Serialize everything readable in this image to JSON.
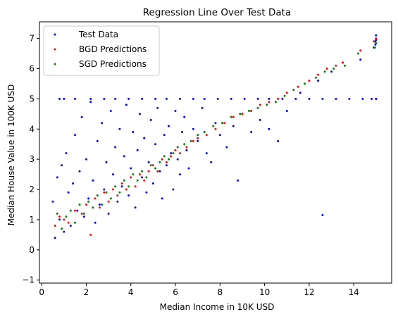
{
  "chart_data": {
    "type": "scatter",
    "title": "Regression Line Over Test Data",
    "xlabel": "Median Income in 10K USD",
    "ylabel": "Median House Value in 100K USD",
    "xlim": [
      -0.1,
      15.7
    ],
    "ylim": [
      -1.1,
      7.55
    ],
    "x_ticks": [
      0,
      2,
      4,
      6,
      8,
      10,
      12,
      14
    ],
    "y_ticks": [
      -1,
      0,
      1,
      2,
      3,
      4,
      5,
      6,
      7
    ],
    "grid": false,
    "legend_position": "top-left",
    "series": [
      {
        "name": "Test Data",
        "color": "#0000ff",
        "marker_size": 1.5,
        "points": [
          [
            0.5,
            1.6
          ],
          [
            0.6,
            0.4
          ],
          [
            0.7,
            2.4
          ],
          [
            0.8,
            1.0
          ],
          [
            0.9,
            2.8
          ],
          [
            1.0,
            0.6
          ],
          [
            1.1,
            3.2
          ],
          [
            1.2,
            1.9
          ],
          [
            1.3,
            0.8
          ],
          [
            1.4,
            2.2
          ],
          [
            1.5,
            3.8
          ],
          [
            1.6,
            1.3
          ],
          [
            1.7,
            2.6
          ],
          [
            1.8,
            4.4
          ],
          [
            1.9,
            1.1
          ],
          [
            2.0,
            3.0
          ],
          [
            2.1,
            1.7
          ],
          [
            2.2,
            4.9
          ],
          [
            2.3,
            2.3
          ],
          [
            2.4,
            0.9
          ],
          [
            2.5,
            3.6
          ],
          [
            2.6,
            1.5
          ],
          [
            2.7,
            4.2
          ],
          [
            2.8,
            2.0
          ],
          [
            2.9,
            2.9
          ],
          [
            3.0,
            1.2
          ],
          [
            3.1,
            4.6
          ],
          [
            3.2,
            2.5
          ],
          [
            3.3,
            3.4
          ],
          [
            3.4,
            1.6
          ],
          [
            3.5,
            4.0
          ],
          [
            3.6,
            2.1
          ],
          [
            3.7,
            3.1
          ],
          [
            3.8,
            4.8
          ],
          [
            3.9,
            1.8
          ],
          [
            4.0,
            2.7
          ],
          [
            4.1,
            3.9
          ],
          [
            4.2,
            1.4
          ],
          [
            4.3,
            3.3
          ],
          [
            4.4,
            4.5
          ],
          [
            4.5,
            2.4
          ],
          [
            4.6,
            3.7
          ],
          [
            4.7,
            1.9
          ],
          [
            4.8,
            2.9
          ],
          [
            4.9,
            4.3
          ],
          [
            5.0,
            2.2
          ],
          [
            5.1,
            3.5
          ],
          [
            5.2,
            4.7
          ],
          [
            5.3,
            2.6
          ],
          [
            5.4,
            1.7
          ],
          [
            5.5,
            3.8
          ],
          [
            5.6,
            2.8
          ],
          [
            5.7,
            4.1
          ],
          [
            5.8,
            3.2
          ],
          [
            5.9,
            2.0
          ],
          [
            6.0,
            4.6
          ],
          [
            6.1,
            3.0
          ],
          [
            6.2,
            2.5
          ],
          [
            6.3,
            3.9
          ],
          [
            6.4,
            4.4
          ],
          [
            6.5,
            3.3
          ],
          [
            6.6,
            2.7
          ],
          [
            6.8,
            4.0
          ],
          [
            7.0,
            3.6
          ],
          [
            7.2,
            4.7
          ],
          [
            7.4,
            3.2
          ],
          [
            7.6,
            2.9
          ],
          [
            7.8,
            4.2
          ],
          [
            8.0,
            3.8
          ],
          [
            8.3,
            3.4
          ],
          [
            8.6,
            4.1
          ],
          [
            8.8,
            2.3
          ],
          [
            9.0,
            4.5
          ],
          [
            9.4,
            3.9
          ],
          [
            9.8,
            4.3
          ],
          [
            10.2,
            4.0
          ],
          [
            10.6,
            3.6
          ],
          [
            11.0,
            4.6
          ],
          [
            11.6,
            5.2
          ],
          [
            12.4,
            5.6
          ],
          [
            12.6,
            1.15
          ],
          [
            13.0,
            5.9
          ],
          [
            13.5,
            6.2
          ],
          [
            14.3,
            6.3
          ],
          [
            15.0,
            5.0
          ],
          [
            14.9,
            6.7
          ],
          [
            14.95,
            6.9
          ],
          [
            15.0,
            7.1
          ],
          [
            15.0,
            6.95
          ],
          [
            14.97,
            6.8
          ],
          [
            0.8,
            5.0
          ],
          [
            1.0,
            5.0
          ],
          [
            1.5,
            5.0
          ],
          [
            2.2,
            5.0
          ],
          [
            2.8,
            5.0
          ],
          [
            3.3,
            5.0
          ],
          [
            3.9,
            5.0
          ],
          [
            4.5,
            5.0
          ],
          [
            5.1,
            5.0
          ],
          [
            5.6,
            5.0
          ],
          [
            6.2,
            5.0
          ],
          [
            6.8,
            5.0
          ],
          [
            7.3,
            5.0
          ],
          [
            7.9,
            5.0
          ],
          [
            8.5,
            5.0
          ],
          [
            9.1,
            5.0
          ],
          [
            9.7,
            5.0
          ],
          [
            10.2,
            5.0
          ],
          [
            10.8,
            5.0
          ],
          [
            11.4,
            5.0
          ],
          [
            12.0,
            5.0
          ],
          [
            12.6,
            5.0
          ],
          [
            13.2,
            5.0
          ],
          [
            13.8,
            5.0
          ],
          [
            14.4,
            5.0
          ],
          [
            14.8,
            5.0
          ],
          [
            15.0,
            5.0
          ]
        ]
      },
      {
        "name": "BGD Predictions",
        "color": "#ff0000",
        "marker_size": 1.5,
        "points": [
          [
            0.6,
            0.8
          ],
          [
            0.8,
            1.1
          ],
          [
            1.0,
            1.0
          ],
          [
            1.2,
            0.9
          ],
          [
            1.5,
            1.3
          ],
          [
            1.8,
            1.2
          ],
          [
            2.0,
            1.5
          ],
          [
            2.2,
            0.5
          ],
          [
            2.4,
            1.7
          ],
          [
            2.6,
            1.4
          ],
          [
            2.8,
            1.9
          ],
          [
            3.0,
            1.6
          ],
          [
            3.2,
            2.0
          ],
          [
            3.4,
            1.8
          ],
          [
            3.6,
            2.2
          ],
          [
            3.8,
            2.0
          ],
          [
            4.0,
            2.4
          ],
          [
            4.2,
            2.1
          ],
          [
            4.4,
            2.5
          ],
          [
            4.6,
            2.3
          ],
          [
            4.8,
            2.6
          ],
          [
            5.0,
            2.8
          ],
          [
            5.2,
            2.6
          ],
          [
            5.4,
            3.0
          ],
          [
            5.6,
            2.9
          ],
          [
            5.8,
            3.1
          ],
          [
            6.0,
            3.3
          ],
          [
            6.2,
            3.2
          ],
          [
            6.5,
            3.4
          ],
          [
            6.8,
            3.6
          ],
          [
            7.0,
            3.7
          ],
          [
            7.4,
            3.8
          ],
          [
            7.8,
            4.0
          ],
          [
            8.2,
            4.2
          ],
          [
            8.6,
            4.4
          ],
          [
            9.0,
            4.5
          ],
          [
            9.4,
            4.6
          ],
          [
            9.8,
            4.8
          ],
          [
            10.2,
            4.9
          ],
          [
            10.6,
            5.0
          ],
          [
            11.0,
            5.2
          ],
          [
            11.5,
            5.4
          ],
          [
            12.0,
            5.6
          ],
          [
            12.4,
            5.8
          ],
          [
            12.8,
            6.0
          ],
          [
            13.2,
            6.1
          ],
          [
            13.5,
            6.2
          ],
          [
            14.3,
            6.6
          ],
          [
            14.9,
            6.9
          ],
          [
            15.0,
            7.0
          ]
        ]
      },
      {
        "name": "SGD Predictions",
        "color": "#008000",
        "marker_size": 1.5,
        "points": [
          [
            0.7,
            1.2
          ],
          [
            0.9,
            0.7
          ],
          [
            1.1,
            1.1
          ],
          [
            1.3,
            1.3
          ],
          [
            1.5,
            0.9
          ],
          [
            1.7,
            1.5
          ],
          [
            1.9,
            1.2
          ],
          [
            2.1,
            1.6
          ],
          [
            2.3,
            1.4
          ],
          [
            2.5,
            1.8
          ],
          [
            2.7,
            1.5
          ],
          [
            2.9,
            1.9
          ],
          [
            3.1,
            1.7
          ],
          [
            3.3,
            2.1
          ],
          [
            3.5,
            1.9
          ],
          [
            3.7,
            2.3
          ],
          [
            3.9,
            2.1
          ],
          [
            4.1,
            2.5
          ],
          [
            4.3,
            2.3
          ],
          [
            4.5,
            2.6
          ],
          [
            4.7,
            2.4
          ],
          [
            4.9,
            2.8
          ],
          [
            5.1,
            2.7
          ],
          [
            5.3,
            2.9
          ],
          [
            5.5,
            3.1
          ],
          [
            5.7,
            3.0
          ],
          [
            5.9,
            3.2
          ],
          [
            6.1,
            3.4
          ],
          [
            6.4,
            3.5
          ],
          [
            6.7,
            3.6
          ],
          [
            7.0,
            3.8
          ],
          [
            7.3,
            3.9
          ],
          [
            7.7,
            4.1
          ],
          [
            8.1,
            4.2
          ],
          [
            8.5,
            4.4
          ],
          [
            8.9,
            4.5
          ],
          [
            9.3,
            4.6
          ],
          [
            9.7,
            4.7
          ],
          [
            10.1,
            4.8
          ],
          [
            10.5,
            4.9
          ],
          [
            10.9,
            5.1
          ],
          [
            11.3,
            5.3
          ],
          [
            11.8,
            5.5
          ],
          [
            12.3,
            5.7
          ],
          [
            12.7,
            5.9
          ],
          [
            13.1,
            6.0
          ],
          [
            13.6,
            6.1
          ],
          [
            14.2,
            6.5
          ],
          [
            14.95,
            6.7
          ],
          [
            15.0,
            6.85
          ]
        ]
      }
    ]
  }
}
